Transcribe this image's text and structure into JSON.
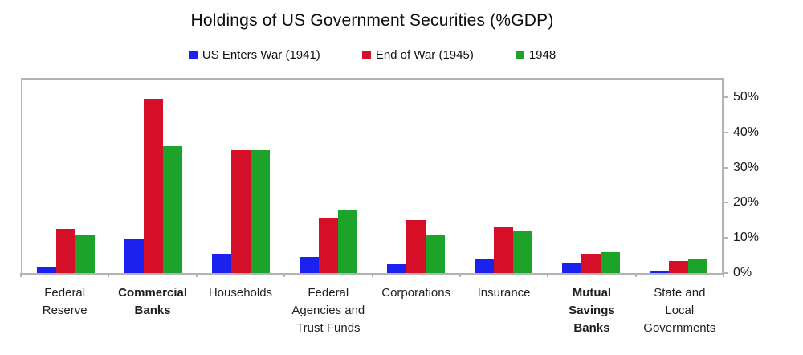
{
  "chart_data": {
    "type": "bar",
    "title": "Holdings of US Government Securities (%GDP)",
    "xlabel": "",
    "ylabel": "",
    "y_axis_side": "right",
    "grid": false,
    "legend_position": "top",
    "ylim": [
      0,
      55
    ],
    "categories": [
      "Federal\nReserve",
      "Commercial\nBanks",
      "Households",
      "Federal\nAgencies and\nTrust Funds",
      "Corporations",
      "Insurance",
      "Mutual\nSavings Banks",
      "State and\nLocal\nGovernments"
    ],
    "bold_category_indices": [
      1,
      6
    ],
    "series": [
      {
        "name": "US Enters War (1941)",
        "color": "#1c22ee",
        "values": [
          1.5,
          9.5,
          5.5,
          4.5,
          2.5,
          4,
          3,
          0.5
        ]
      },
      {
        "name": "End of War (1945)",
        "color": "#d50f27",
        "values": [
          12.5,
          49.5,
          35,
          15.5,
          15,
          13,
          5.5,
          3.5
        ]
      },
      {
        "name": "1948",
        "color": "#1ca32a",
        "values": [
          11,
          36,
          35,
          18,
          11,
          12,
          6,
          4
        ]
      }
    ],
    "y_ticks": [
      {
        "label": "0%",
        "value": 0
      },
      {
        "label": "10%",
        "value": 10
      },
      {
        "label": "20%",
        "value": 20
      },
      {
        "label": "30%",
        "value": 30
      },
      {
        "label": "40%",
        "value": 40
      },
      {
        "label": "50%",
        "value": 50
      }
    ],
    "colors_meta": {
      "axis_border": "#b3b3b3",
      "title_text": "#0d0d0d",
      "label_text": "#1f1f1f"
    }
  }
}
